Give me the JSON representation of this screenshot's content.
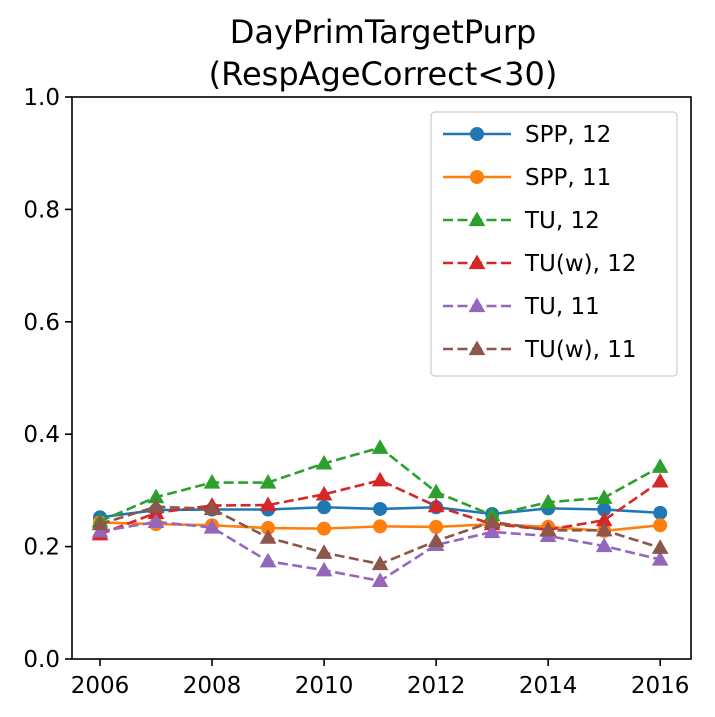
{
  "chart_data": {
    "type": "line",
    "title": [
      "DayPrimTargetPurp",
      "(RespAgeCorrect<30)"
    ],
    "xlabel": "",
    "ylabel": "",
    "x": [
      2006,
      2007,
      2008,
      2009,
      2010,
      2011,
      2012,
      2013,
      2014,
      2015,
      2016
    ],
    "xlim": [
      2005.5,
      2016.55
    ],
    "ylim": [
      0.0,
      1.0
    ],
    "xticks": [
      2006,
      2008,
      2010,
      2012,
      2014,
      2016
    ],
    "xtick_labels": [
      "2006",
      "2008",
      "2010",
      "2012",
      "2014",
      "2016"
    ],
    "yticks": [
      0.0,
      0.2,
      0.4,
      0.6,
      0.8,
      1.0
    ],
    "ytick_labels": [
      "0.0",
      "0.2",
      "0.4",
      "0.6",
      "0.8",
      "1.0"
    ],
    "grid": false,
    "legend_position": "top-right",
    "series": [
      {
        "name": "SPP, 12",
        "color": "#1f77b4",
        "dash": "solid",
        "marker": "circle",
        "values": [
          0.252,
          0.265,
          0.266,
          0.266,
          0.27,
          0.267,
          0.27,
          0.258,
          0.268,
          0.266,
          0.26
        ]
      },
      {
        "name": "SPP, 11",
        "color": "#ff7f0e",
        "dash": "solid",
        "marker": "circle",
        "values": [
          0.243,
          0.24,
          0.238,
          0.233,
          0.232,
          0.236,
          0.235,
          0.24,
          0.235,
          0.228,
          0.238
        ]
      },
      {
        "name": "TU, 12",
        "color": "#2ca02c",
        "dash": "dashed",
        "marker": "triangle",
        "values": [
          0.245,
          0.288,
          0.314,
          0.314,
          0.348,
          0.376,
          0.297,
          0.256,
          0.279,
          0.287,
          0.342
        ]
      },
      {
        "name": "TU(w), 12",
        "color": "#d62728",
        "dash": "dashed",
        "marker": "triangle",
        "values": [
          0.222,
          0.26,
          0.273,
          0.274,
          0.293,
          0.318,
          0.272,
          0.24,
          0.23,
          0.247,
          0.316
        ]
      },
      {
        "name": "TU, 11",
        "color": "#9467bd",
        "dash": "dashed",
        "marker": "triangle",
        "values": [
          0.227,
          0.244,
          0.234,
          0.174,
          0.158,
          0.139,
          0.203,
          0.226,
          0.219,
          0.201,
          0.177
        ]
      },
      {
        "name": "TU(w), 11",
        "color": "#8c564b",
        "dash": "dashed",
        "marker": "triangle",
        "values": [
          0.24,
          0.271,
          0.267,
          0.216,
          0.189,
          0.169,
          0.21,
          0.244,
          0.229,
          0.229,
          0.198
        ]
      }
    ]
  }
}
